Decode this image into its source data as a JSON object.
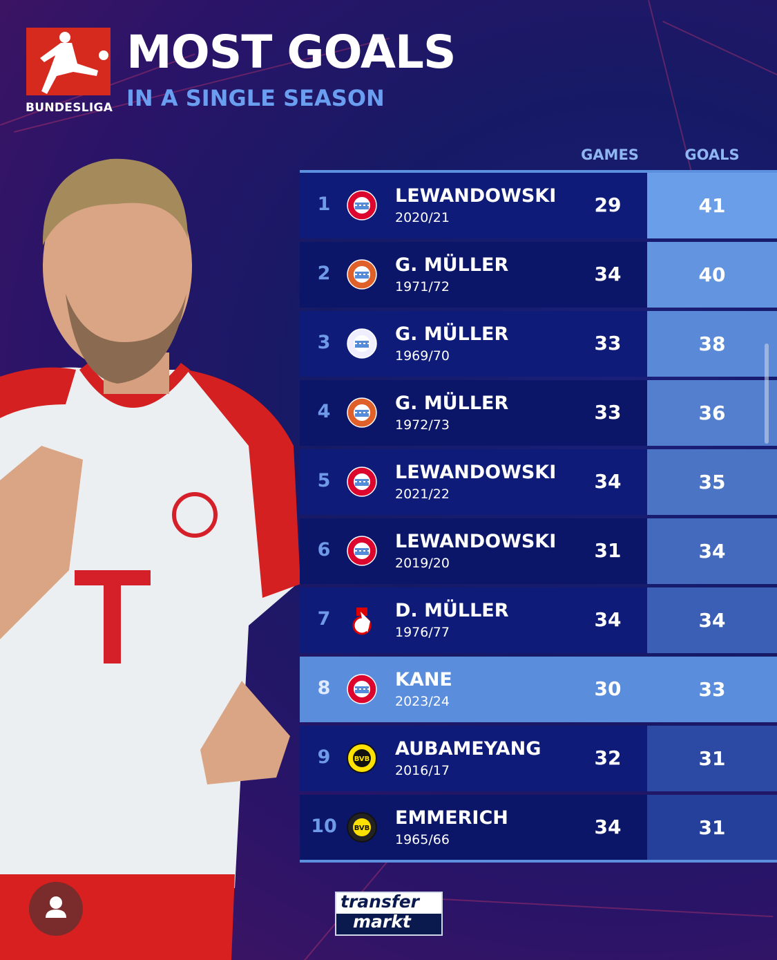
{
  "header": {
    "logo_text": "BUNDESLIGA",
    "title": "MOST GOALS",
    "subtitle": "IN A SINGLE SEASON"
  },
  "columns": {
    "games": "GAMES",
    "goals": "GOALS"
  },
  "rows": [
    {
      "rank": "1",
      "name": "LEWANDOWSKI",
      "season": "2020/21",
      "games": "29",
      "goals": "41",
      "club": "bayern"
    },
    {
      "rank": "2",
      "name": "G. MÜLLER",
      "season": "1971/72",
      "games": "34",
      "goals": "40",
      "club": "bayern-old"
    },
    {
      "rank": "3",
      "name": "G. MÜLLER",
      "season": "1969/70",
      "games": "33",
      "goals": "38",
      "club": "bayern-vintage"
    },
    {
      "rank": "4",
      "name": "G. MÜLLER",
      "season": "1972/73",
      "games": "33",
      "goals": "36",
      "club": "bayern-old"
    },
    {
      "rank": "5",
      "name": "LEWANDOWSKI",
      "season": "2021/22",
      "games": "34",
      "goals": "35",
      "club": "bayern"
    },
    {
      "rank": "6",
      "name": "LEWANDOWSKI",
      "season": "2019/20",
      "games": "31",
      "goals": "34",
      "club": "bayern"
    },
    {
      "rank": "7",
      "name": "D. MÜLLER",
      "season": "1976/77",
      "games": "34",
      "goals": "34",
      "club": "koeln"
    },
    {
      "rank": "8",
      "name": "KANE",
      "season": "2023/24",
      "games": "30",
      "goals": "33",
      "club": "bayern",
      "highlight": true
    },
    {
      "rank": "9",
      "name": "AUBAMEYANG",
      "season": "2016/17",
      "games": "32",
      "goals": "31",
      "club": "dortmund"
    },
    {
      "rank": "10",
      "name": "EMMERICH",
      "season": "1965/66",
      "games": "34",
      "goals": "31",
      "club": "dortmund-old"
    }
  ],
  "footer": {
    "brand_line1": "transfer",
    "brand_line2": "markt"
  },
  "colors": {
    "goals_top": "#6a9ee8",
    "goals_bottom": "#24409a",
    "highlight": "#5a8ddc",
    "bayern_red": "#dc052d",
    "bvb_yellow": "#fde100"
  }
}
